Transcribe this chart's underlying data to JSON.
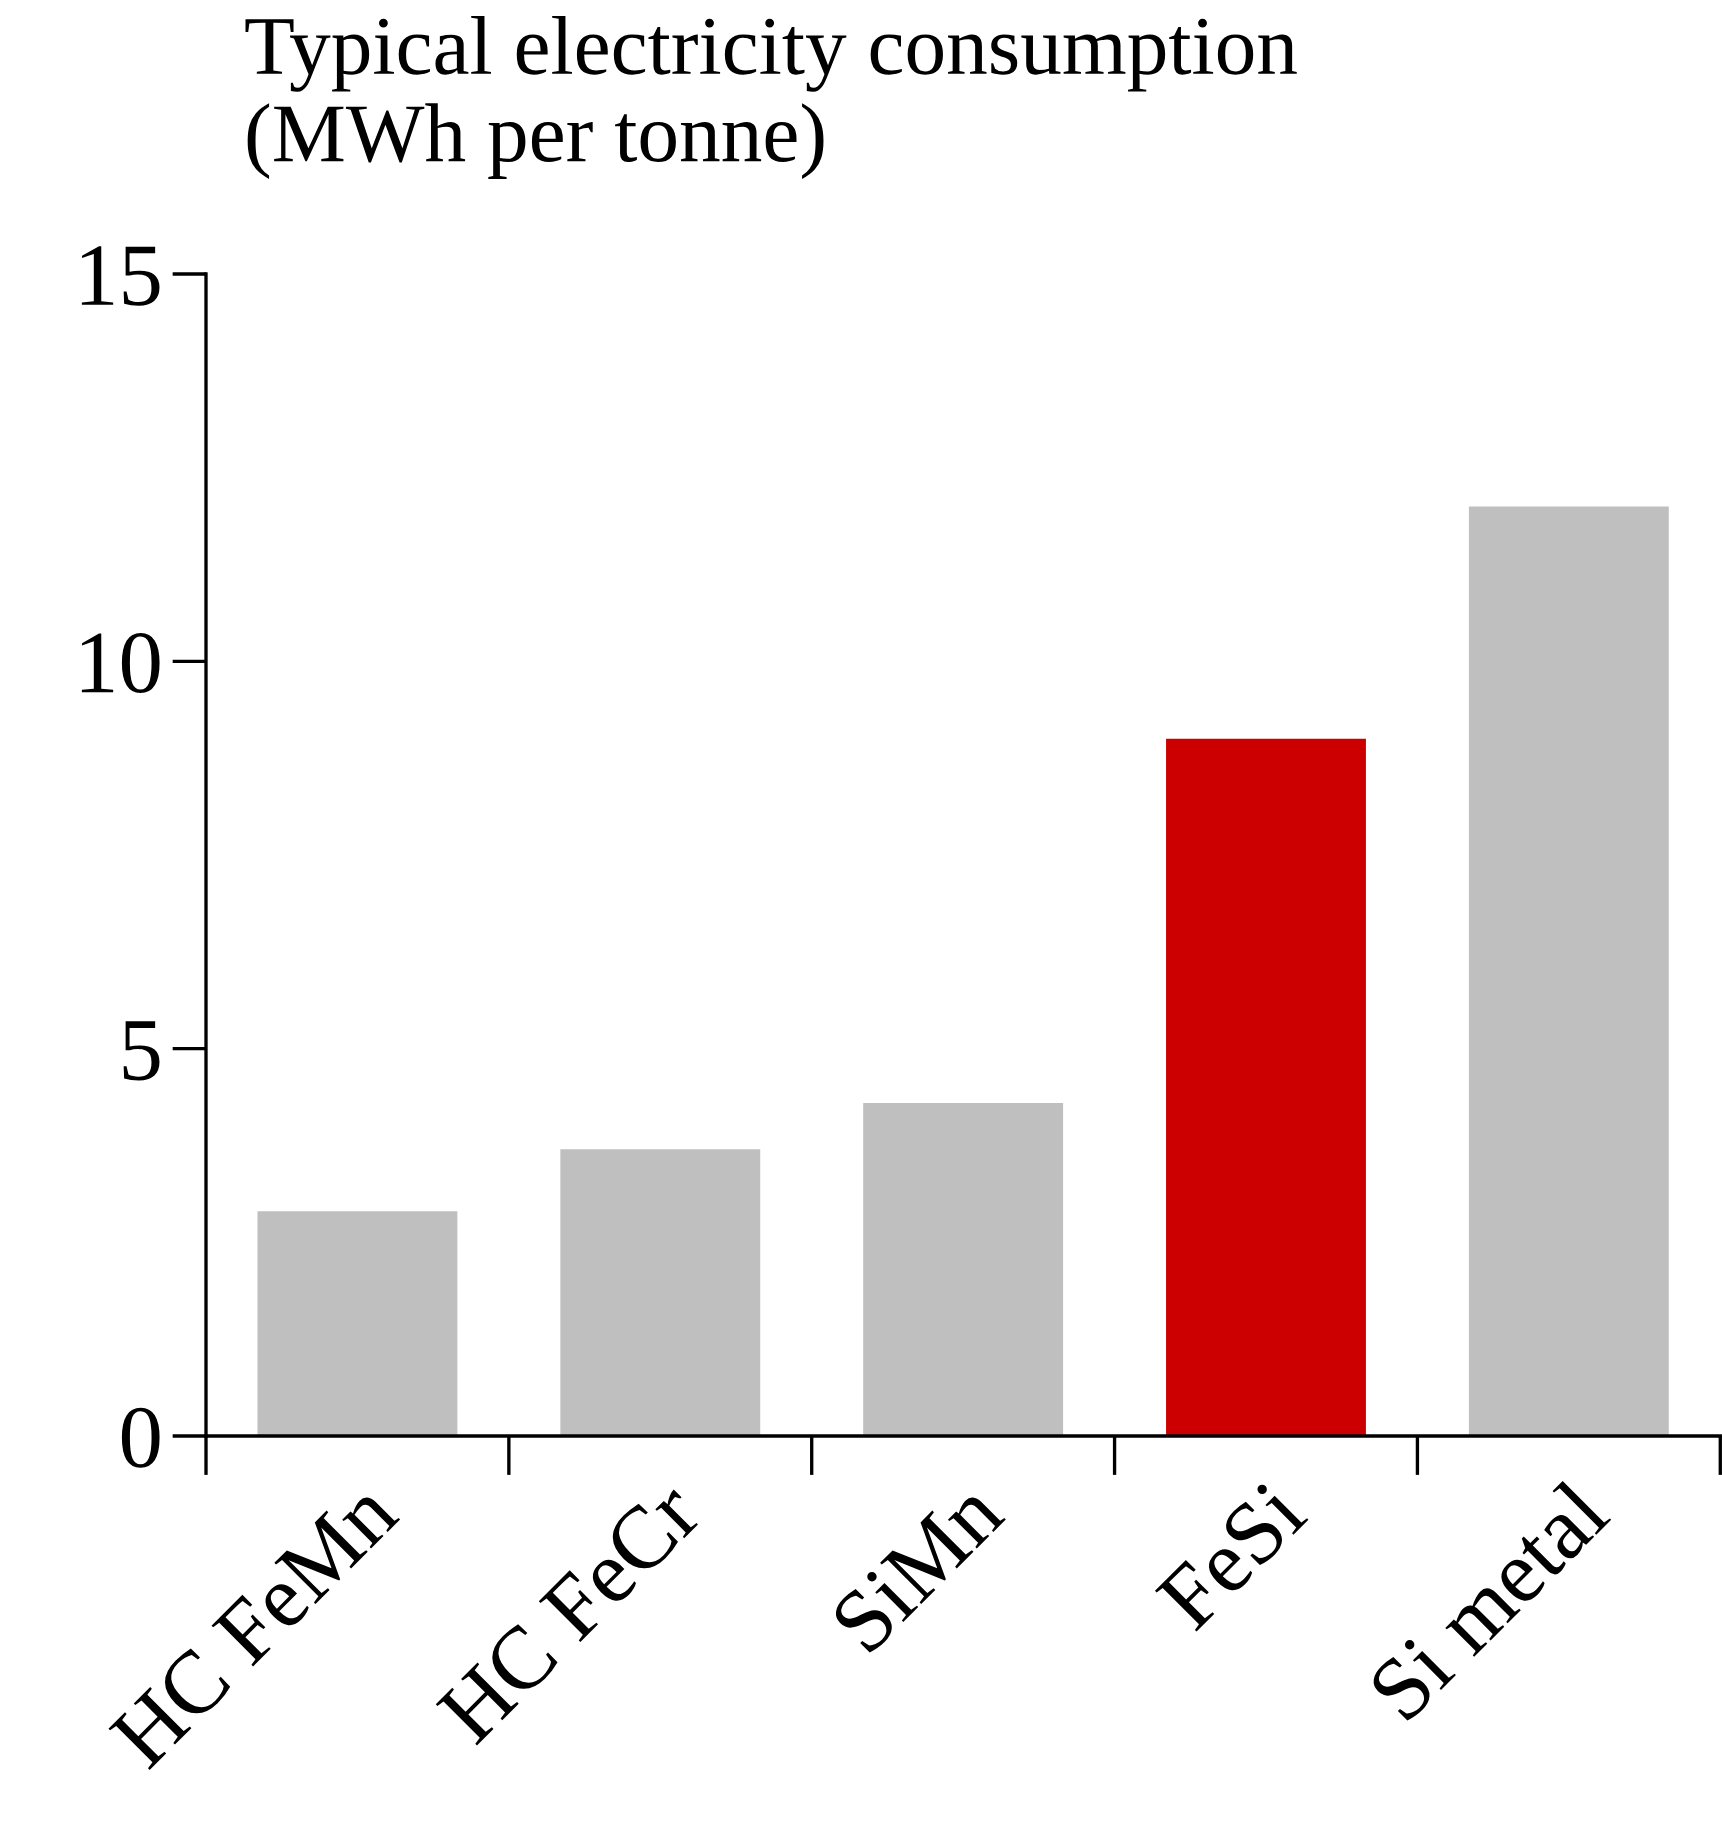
{
  "chart_data": {
    "type": "bar",
    "title": "Typical electricity consumption\n(MWh per tonne)",
    "categories": [
      "HC FeMn",
      "HC FeCr",
      "SiMn",
      "FeSi",
      "Si metal"
    ],
    "values": [
      2.9,
      3.7,
      4.3,
      9,
      12
    ],
    "colors": [
      "#bfbfbf",
      "#bfbfbf",
      "#bfbfbf",
      "#cc0000",
      "#bfbfbf"
    ],
    "ylim": [
      0,
      15
    ],
    "yticks": [
      0,
      5,
      10,
      15
    ],
    "grid": false
  }
}
